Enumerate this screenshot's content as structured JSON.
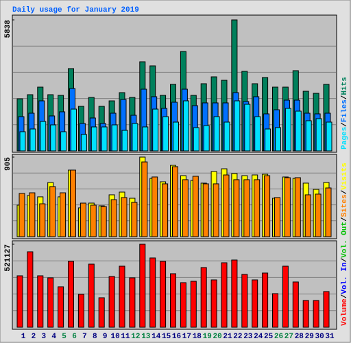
{
  "chart_data": [
    {
      "type": "bar",
      "title": "Daily usage for January 2019",
      "ylim": [
        0,
        5838
      ],
      "yticks": [
        5838
      ],
      "separator": "/",
      "series": [
        {
          "name": "Hits",
          "color": "#00805c",
          "values": [
            2323,
            2506,
            2843,
            2506,
            2476,
            3668,
            1987,
            2384,
            1987,
            2231,
            2598,
            2384,
            3973,
            3790,
            2476,
            2965,
            4432,
            2476,
            2995,
            3301,
            3148,
            5838,
            3546,
            2995,
            3271,
            2843,
            2843,
            3576,
            2659,
            2567,
            2965
          ]
        },
        {
          "name": "Files",
          "color": "#0070ff",
          "values": [
            1528,
            1681,
            2231,
            1559,
            1742,
            2781,
            1223,
            1467,
            1223,
            1681,
            2292,
            1589,
            2751,
            2415,
            1895,
            2170,
            2751,
            2017,
            2140,
            2140,
            2140,
            2598,
            2201,
            2415,
            1651,
            1834,
            2262,
            2262,
            1681,
            1651,
            1681
          ]
        },
        {
          "name": "Pages",
          "color": "#00e0ff",
          "values": [
            856,
            978,
            1314,
            1161,
            856,
            1864,
            734,
            1070,
            1070,
            1161,
            917,
            1223,
            1070,
            1864,
            1528,
            1284,
            2231,
            1039,
            1131,
            1528,
            1284,
            2231,
            2078,
            1528,
            978,
            1039,
            1895,
            1773,
            1345,
            1437,
            1284
          ]
        }
      ]
    },
    {
      "type": "bar",
      "ylim": [
        0,
        905
      ],
      "yticks": [
        905
      ],
      "series": [
        {
          "name": "Visits",
          "color": "#ffff00",
          "values": [
            359,
            468,
            453,
            616,
            453,
            757,
            328,
            382,
            351,
            476,
            507,
            437,
            905,
            663,
            624,
            811,
            694,
            640,
            609,
            741,
            772,
            718,
            694,
            702,
            710,
            437,
            679,
            663,
            609,
            538,
            616
          ]
        },
        {
          "name": "Sites",
          "color": "#ff8000",
          "values": [
            492,
            499,
            374,
            570,
            499,
            757,
            382,
            359,
            343,
            421,
            445,
            390,
            850,
            679,
            601,
            796,
            648,
            687,
            601,
            601,
            702,
            648,
            648,
            648,
            694,
            445,
            671,
            671,
            476,
            484,
            554
          ]
        }
      ]
    },
    {
      "type": "bar",
      "ylim": [
        0,
        521127
      ],
      "yticks": [
        521127
      ],
      "categories": [
        "1",
        "2",
        "3",
        "4",
        "5",
        "6",
        "7",
        "8",
        "9",
        "10",
        "11",
        "12",
        "13",
        "14",
        "15",
        "16",
        "17",
        "18",
        "19",
        "20",
        "21",
        "22",
        "23",
        "24",
        "25",
        "26",
        "27",
        "28",
        "29",
        "30",
        "31"
      ],
      "label_colors": [
        "#000080",
        "#000080",
        "#000080",
        "#000080",
        "#008040",
        "#008040",
        "#000080",
        "#000080",
        "#000080",
        "#000080",
        "#000080",
        "#008040",
        "#008040",
        "#000080",
        "#000080",
        "#000080",
        "#000080",
        "#000080",
        "#008040",
        "#008040",
        "#000080",
        "#000080",
        "#000080",
        "#000080",
        "#000080",
        "#008040",
        "#008040",
        "#000080",
        "#000080",
        "#000080",
        "#000080"
      ],
      "series": [
        {
          "name": "Volume",
          "color": "#ff0000",
          "values": [
            323010,
            473748,
            323010,
            310090,
            254101,
            413453,
            206726,
            396226,
            185192,
            318703,
            383305,
            310090,
            521127,
            434987,
            413453,
            335930,
            279942,
            288556,
            374692,
            297169,
            404839,
            422066,
            331624,
            297169,
            340237,
            211033,
            383305,
            284249,
            167965,
            167965,
            223954
          ]
        },
        {
          "name": "Vol. In",
          "color": "#0000ff",
          "values": [
            0,
            0,
            0,
            0,
            0,
            0,
            0,
            0,
            0,
            0,
            0,
            0,
            0,
            0,
            0,
            0,
            0,
            0,
            0,
            0,
            0,
            0,
            0,
            0,
            0,
            0,
            0,
            0,
            0,
            0,
            0
          ]
        },
        {
          "name": "Vol. Out",
          "color": "#00c000",
          "values": [
            0,
            0,
            0,
            0,
            0,
            0,
            0,
            0,
            0,
            0,
            0,
            0,
            0,
            0,
            0,
            0,
            0,
            0,
            0,
            0,
            0,
            0,
            0,
            0,
            0,
            0,
            0,
            0,
            0,
            0,
            0
          ]
        }
      ]
    }
  ]
}
